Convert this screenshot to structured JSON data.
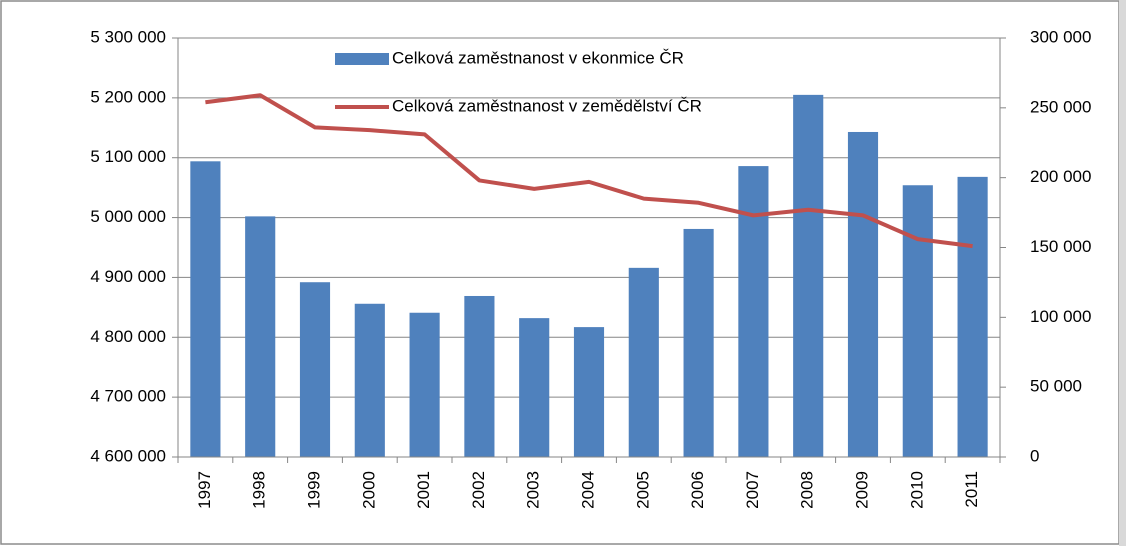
{
  "chart_data": {
    "type": "combo",
    "categories": [
      "1997",
      "1998",
      "1999",
      "2000",
      "2001",
      "2002",
      "2003",
      "2004",
      "2005",
      "2006",
      "2007",
      "2008",
      "2009",
      "2010",
      "2011"
    ],
    "series": [
      {
        "name": "Celková zaměstnanost v ekonmice ČR",
        "type": "bar",
        "color": "#4f81bd",
        "values": [
          5094000,
          5002000,
          4892000,
          4856000,
          4841000,
          4869000,
          4832000,
          4817000,
          4916000,
          4981000,
          5086000,
          5205000,
          5143000,
          5054000,
          5068000
        ]
      },
      {
        "name": "Celková zaměstnanost v zemědělství ČR",
        "type": "line",
        "axis": "y2",
        "color": "#c0504d",
        "values": [
          254000,
          259000,
          236000,
          234000,
          231000,
          198000,
          192000,
          197000,
          185000,
          182000,
          173000,
          177000,
          173000,
          156000,
          151000
        ]
      }
    ],
    "ylim": [
      4600000,
      5300000
    ],
    "yticks": [
      {
        "value": 4600000,
        "label": "4 600 000"
      },
      {
        "value": 4700000,
        "label": "4 700 000"
      },
      {
        "value": 4800000,
        "label": "4 800 000"
      },
      {
        "value": 4900000,
        "label": "4 900 000"
      },
      {
        "value": 5000000,
        "label": "5 000 000"
      },
      {
        "value": 5100000,
        "label": "5 100 000"
      },
      {
        "value": 5200000,
        "label": "5 200 000"
      },
      {
        "value": 5300000,
        "label": "5 300 000"
      }
    ],
    "y2lim": [
      0,
      300000
    ],
    "y2ticks": [
      0,
      {
        "value": 50000,
        "label": "50 000"
      },
      {
        "value": 100000,
        "label": "100 000"
      },
      {
        "value": 150000,
        "label": "150 000"
      },
      {
        "value": 200000,
        "label": "200 000"
      },
      {
        "value": 250000,
        "label": "250 000"
      },
      {
        "value": 300000,
        "label": "300 000"
      }
    ],
    "grid": true,
    "legend_position": "top"
  }
}
